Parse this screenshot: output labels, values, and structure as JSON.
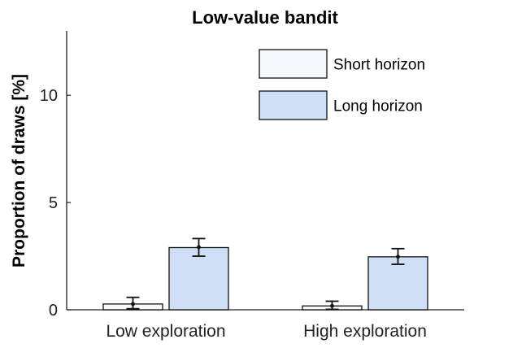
{
  "chart_data": {
    "type": "bar",
    "title": "Low-value bandit",
    "xlabel": "",
    "ylabel": "Proportion of draws [%]",
    "ylim": [
      0,
      13
    ],
    "yticks": [
      0,
      5,
      10
    ],
    "categories": [
      "Low exploration",
      "High exploration"
    ],
    "series": [
      {
        "name": "Short horizon",
        "color": "#f5f8fd",
        "values": [
          0.27,
          0.18
        ],
        "error_low": [
          0.05,
          0.02
        ],
        "error_high": [
          0.58,
          0.4
        ],
        "point": [
          0.27,
          0.18
        ]
      },
      {
        "name": "Long horizon",
        "color": "#cfdff5",
        "values": [
          2.9,
          2.47
        ],
        "error_low": [
          2.5,
          2.12
        ],
        "error_high": [
          3.32,
          2.85
        ],
        "point": [
          2.92,
          2.47
        ]
      }
    ],
    "legend_position": "top-right",
    "grid": false
  }
}
